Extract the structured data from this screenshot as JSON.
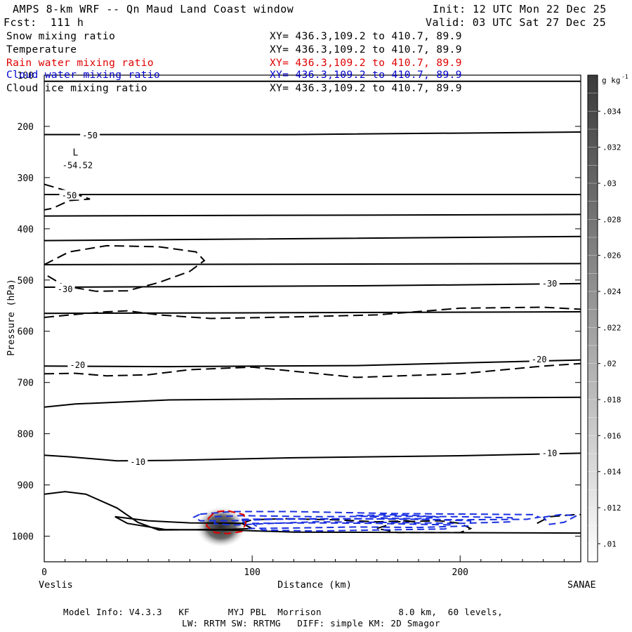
{
  "header": {
    "title": "AMPS 8-km WRF -- Qn Maud Land Coast window",
    "init": "Init: 12 UTC Mon 22 Dec 25",
    "fcst": "Fcst:  111 h",
    "valid": "Valid: 03 UTC Sat 27 Dec 25"
  },
  "legend": [
    {
      "label": "Snow mixing ratio",
      "xy": "XY= 436.3,109.2 to 410.7, 89.9",
      "color": "#000000"
    },
    {
      "label": "Temperature",
      "xy": "XY= 436.3,109.2 to 410.7, 89.9",
      "color": "#000000"
    },
    {
      "label": "Rain water mixing ratio",
      "xy": "XY= 436.3,109.2 to 410.7, 89.9",
      "color": "#e00000"
    },
    {
      "label": "Cloud water mixing ratio",
      "xy": "XY= 436.3,109.2 to 410.7, 89.9",
      "color": "#0000cc"
    },
    {
      "label": "Cloud ice mixing ratio",
      "xy": "XY= 436.3,109.2 to 410.7, 89.9",
      "color": "#000000"
    }
  ],
  "footer": {
    "line1": "Model Info: V4.3.3   KF       MYJ PBL  Morrison              8.0 km,  60 levels,",
    "line2": "LW: RRTM SW: RRTMG   DIFF: simple KM: 2D Smagor"
  },
  "chart_data": {
    "type": "contour",
    "xlabel": "Distance (km)",
    "ylabel": "Pressure (hPa)",
    "xlim": [
      0,
      258
    ],
    "ylim": [
      1050,
      100
    ],
    "x_ticks": [
      0,
      100,
      200
    ],
    "y_ticks": [
      100,
      200,
      300,
      400,
      500,
      600,
      700,
      800,
      900,
      1000
    ],
    "x_endpoint_labels": {
      "left": "Veslis",
      "right": "SANAE"
    },
    "low_marker": {
      "label": "L",
      "value": "-54.52",
      "x": 15,
      "p": 265
    },
    "colorbar": {
      "unit": "g kg",
      "unit_exponent": "-1",
      "tick_labels": [
        ".01",
        ".012",
        ".014",
        ".016",
        ".018",
        ".02",
        ".022",
        ".024",
        ".026",
        ".028",
        ".03",
        ".032",
        ".034"
      ],
      "levels": [
        0.009,
        0.036
      ],
      "color_low": "#ffffff",
      "color_high": "#3a3a3a"
    },
    "temperature_contours": [
      {
        "label": "-50",
        "label_positions": [
          [
            22,
            218
          ],
          [
            12,
            335
          ]
        ]
      },
      {
        "label": "-30",
        "label_positions": [
          [
            10,
            518
          ],
          [
            243,
            507
          ]
        ]
      },
      {
        "label": "-20",
        "label_positions": [
          [
            16,
            666
          ],
          [
            238,
            655
          ]
        ]
      },
      {
        "label": "-10",
        "label_positions": [
          [
            45,
            855
          ],
          [
            243,
            838
          ]
        ]
      }
    ],
    "snow_max": {
      "x": 85,
      "p": 978,
      "value": 0.036
    }
  }
}
